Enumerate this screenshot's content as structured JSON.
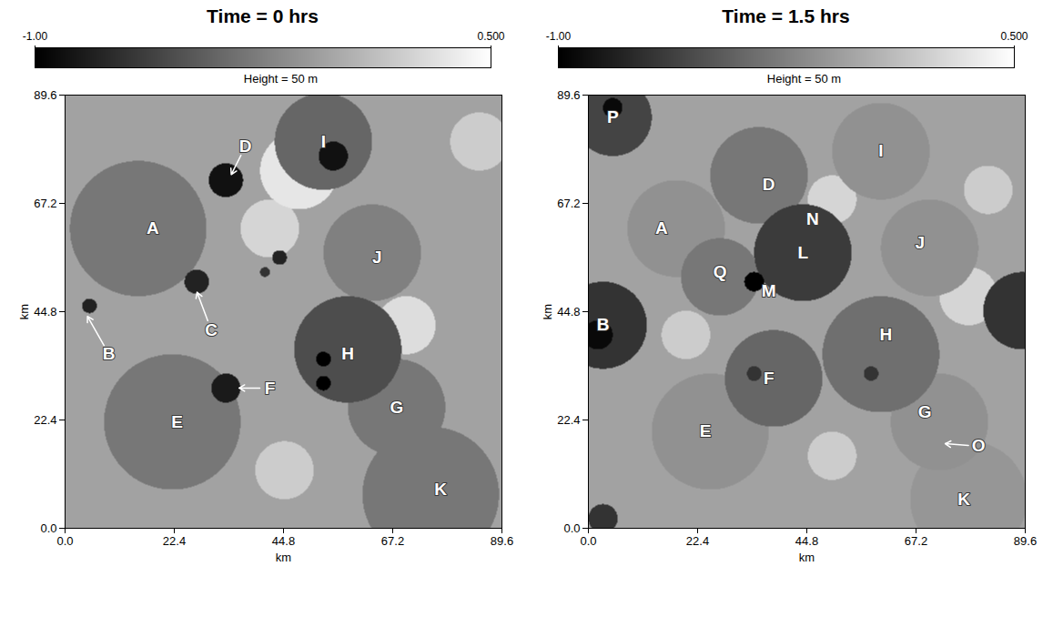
{
  "chart_data": [
    {
      "type": "heatmap",
      "title": "Time = 0 hrs",
      "subtitle": "Height = 50 m",
      "xlabel": "km",
      "ylabel": "km",
      "xlim": [
        0,
        89.6
      ],
      "ylim": [
        0,
        89.6
      ],
      "xticks": [
        {
          "value": 0,
          "label": "0.0"
        },
        22.4,
        44.8,
        67.2,
        89.6
      ],
      "yticks": [
        {
          "value": 0,
          "label": "0.0"
        },
        22.4,
        44.8,
        67.2,
        89.6
      ],
      "colorbar": {
        "range": [
          -1,
          0.5
        ],
        "ticks": [
          {
            "value": -1,
            "label": "-1.00"
          },
          {
            "value": 0.5,
            "label": "0.500"
          }
        ]
      },
      "field": {
        "background": -0.05,
        "light": [
          {
            "x": 48,
            "y": 74,
            "r": 8,
            "value": 0.35
          },
          {
            "x": 42,
            "y": 62,
            "r": 6,
            "value": 0.25
          },
          {
            "x": 70,
            "y": 42,
            "r": 6,
            "value": 0.3
          },
          {
            "x": 45,
            "y": 12,
            "r": 6,
            "value": 0.2
          },
          {
            "x": 85,
            "y": 80,
            "r": 6,
            "value": 0.2
          }
        ],
        "pools": [
          {
            "x": 15,
            "y": 62,
            "r": 14,
            "value": -0.3
          },
          {
            "x": 53,
            "y": 80,
            "r": 10,
            "value": -0.4
          },
          {
            "x": 55,
            "y": 77,
            "r": 3,
            "value": -0.9
          },
          {
            "x": 33,
            "y": 72,
            "r": 3.5,
            "value": -0.9
          },
          {
            "x": 27,
            "y": 51,
            "r": 2.5,
            "value": -0.8
          },
          {
            "x": 5,
            "y": 46,
            "r": 1.5,
            "value": -0.8
          },
          {
            "x": 44,
            "y": 56,
            "r": 1.5,
            "value": -0.8
          },
          {
            "x": 41,
            "y": 53,
            "r": 1,
            "value": -0.7
          },
          {
            "x": 63,
            "y": 57,
            "r": 10,
            "value": -0.25
          },
          {
            "x": 58,
            "y": 37,
            "r": 11,
            "value": -0.55
          },
          {
            "x": 53,
            "y": 35,
            "r": 1.5,
            "value": -1
          },
          {
            "x": 53,
            "y": 30,
            "r": 1.5,
            "value": -1
          },
          {
            "x": 33,
            "y": 29,
            "r": 3,
            "value": -0.85
          },
          {
            "x": 22,
            "y": 22,
            "r": 14,
            "value": -0.3
          },
          {
            "x": 68,
            "y": 25,
            "r": 10,
            "value": -0.3
          },
          {
            "x": 75,
            "y": 7,
            "r": 14,
            "value": -0.3
          }
        ]
      },
      "labels": [
        {
          "text": "A",
          "x": 18,
          "y": 62
        },
        {
          "text": "D",
          "x": 37,
          "y": 79,
          "points_to": [
            34,
            73
          ]
        },
        {
          "text": "I",
          "x": 53,
          "y": 80
        },
        {
          "text": "C",
          "x": 30,
          "y": 41,
          "points_to": [
            27,
            49
          ]
        },
        {
          "text": "B",
          "x": 9,
          "y": 36,
          "points_to": [
            4.5,
            44
          ]
        },
        {
          "text": "J",
          "x": 64,
          "y": 56
        },
        {
          "text": "H",
          "x": 58,
          "y": 36
        },
        {
          "text": "F",
          "x": 42,
          "y": 29,
          "points_to": [
            35.5,
            29
          ]
        },
        {
          "text": "G",
          "x": 68,
          "y": 25
        },
        {
          "text": "E",
          "x": 23,
          "y": 22
        },
        {
          "text": "K",
          "x": 77,
          "y": 8
        }
      ]
    },
    {
      "type": "heatmap",
      "title": "Time = 1.5 hrs",
      "subtitle": "Height = 50 m",
      "xlabel": "km",
      "ylabel": "km",
      "xlim": [
        0,
        89.6
      ],
      "ylim": [
        0,
        89.6
      ],
      "xticks": [
        {
          "value": 0,
          "label": "0.0"
        },
        22.4,
        44.8,
        67.2,
        89.6
      ],
      "yticks": [
        {
          "value": 0,
          "label": "0.0"
        },
        22.4,
        44.8,
        67.2,
        89.6
      ],
      "colorbar": {
        "range": [
          -1,
          0.5
        ],
        "ticks": [
          {
            "value": -1,
            "label": "-1.00"
          },
          {
            "value": 0.5,
            "label": "0.500"
          }
        ]
      },
      "field": {
        "background": -0.05,
        "light": [
          {
            "x": 50,
            "y": 68,
            "r": 5,
            "value": 0.25
          },
          {
            "x": 78,
            "y": 48,
            "r": 6,
            "value": 0.25
          },
          {
            "x": 20,
            "y": 40,
            "r": 5,
            "value": 0.2
          },
          {
            "x": 50,
            "y": 15,
            "r": 5,
            "value": 0.2
          },
          {
            "x": 82,
            "y": 70,
            "r": 5,
            "value": 0.2
          }
        ],
        "pools": [
          {
            "x": 5,
            "y": 85,
            "r": 8,
            "value": -0.6
          },
          {
            "x": 5,
            "y": 87,
            "r": 2,
            "value": -0.95
          },
          {
            "x": 35,
            "y": 73,
            "r": 10,
            "value": -0.3
          },
          {
            "x": 60,
            "y": 78,
            "r": 10,
            "value": -0.15
          },
          {
            "x": 18,
            "y": 62,
            "r": 10,
            "value": -0.15
          },
          {
            "x": 27,
            "y": 52,
            "r": 8,
            "value": -0.3
          },
          {
            "x": 44,
            "y": 57,
            "r": 10,
            "value": -0.65
          },
          {
            "x": 34,
            "y": 51,
            "r": 2,
            "value": -1
          },
          {
            "x": 70,
            "y": 58,
            "r": 10,
            "value": -0.15
          },
          {
            "x": 3,
            "y": 42,
            "r": 9,
            "value": -0.7
          },
          {
            "x": 2,
            "y": 40,
            "r": 3,
            "value": -0.95
          },
          {
            "x": 89,
            "y": 45,
            "r": 8,
            "value": -0.7
          },
          {
            "x": 60,
            "y": 36,
            "r": 12,
            "value": -0.35
          },
          {
            "x": 58,
            "y": 32,
            "r": 1.5,
            "value": -0.7
          },
          {
            "x": 38,
            "y": 31,
            "r": 10,
            "value": -0.4
          },
          {
            "x": 34,
            "y": 32,
            "r": 1.5,
            "value": -0.7
          },
          {
            "x": 25,
            "y": 20,
            "r": 12,
            "value": -0.15
          },
          {
            "x": 72,
            "y": 22,
            "r": 10,
            "value": -0.15
          },
          {
            "x": 78,
            "y": 6,
            "r": 12,
            "value": -0.12
          },
          {
            "x": 3,
            "y": 2,
            "r": 3,
            "value": -0.7
          }
        ]
      },
      "labels": [
        {
          "text": "P",
          "x": 5,
          "y": 85
        },
        {
          "text": "D",
          "x": 37,
          "y": 71
        },
        {
          "text": "I",
          "x": 60,
          "y": 78
        },
        {
          "text": "A",
          "x": 15,
          "y": 62
        },
        {
          "text": "N",
          "x": 46,
          "y": 64
        },
        {
          "text": "L",
          "x": 44,
          "y": 57
        },
        {
          "text": "J",
          "x": 68,
          "y": 59
        },
        {
          "text": "Q",
          "x": 27,
          "y": 53
        },
        {
          "text": "M",
          "x": 37,
          "y": 49
        },
        {
          "text": "B",
          "x": 3,
          "y": 42
        },
        {
          "text": "H",
          "x": 61,
          "y": 40
        },
        {
          "text": "F",
          "x": 37,
          "y": 31
        },
        {
          "text": "G",
          "x": 69,
          "y": 24
        },
        {
          "text": "O",
          "x": 80,
          "y": 17,
          "points_to": [
            73,
            17.5
          ]
        },
        {
          "text": "E",
          "x": 24,
          "y": 20
        },
        {
          "text": "K",
          "x": 77,
          "y": 6
        }
      ]
    }
  ]
}
